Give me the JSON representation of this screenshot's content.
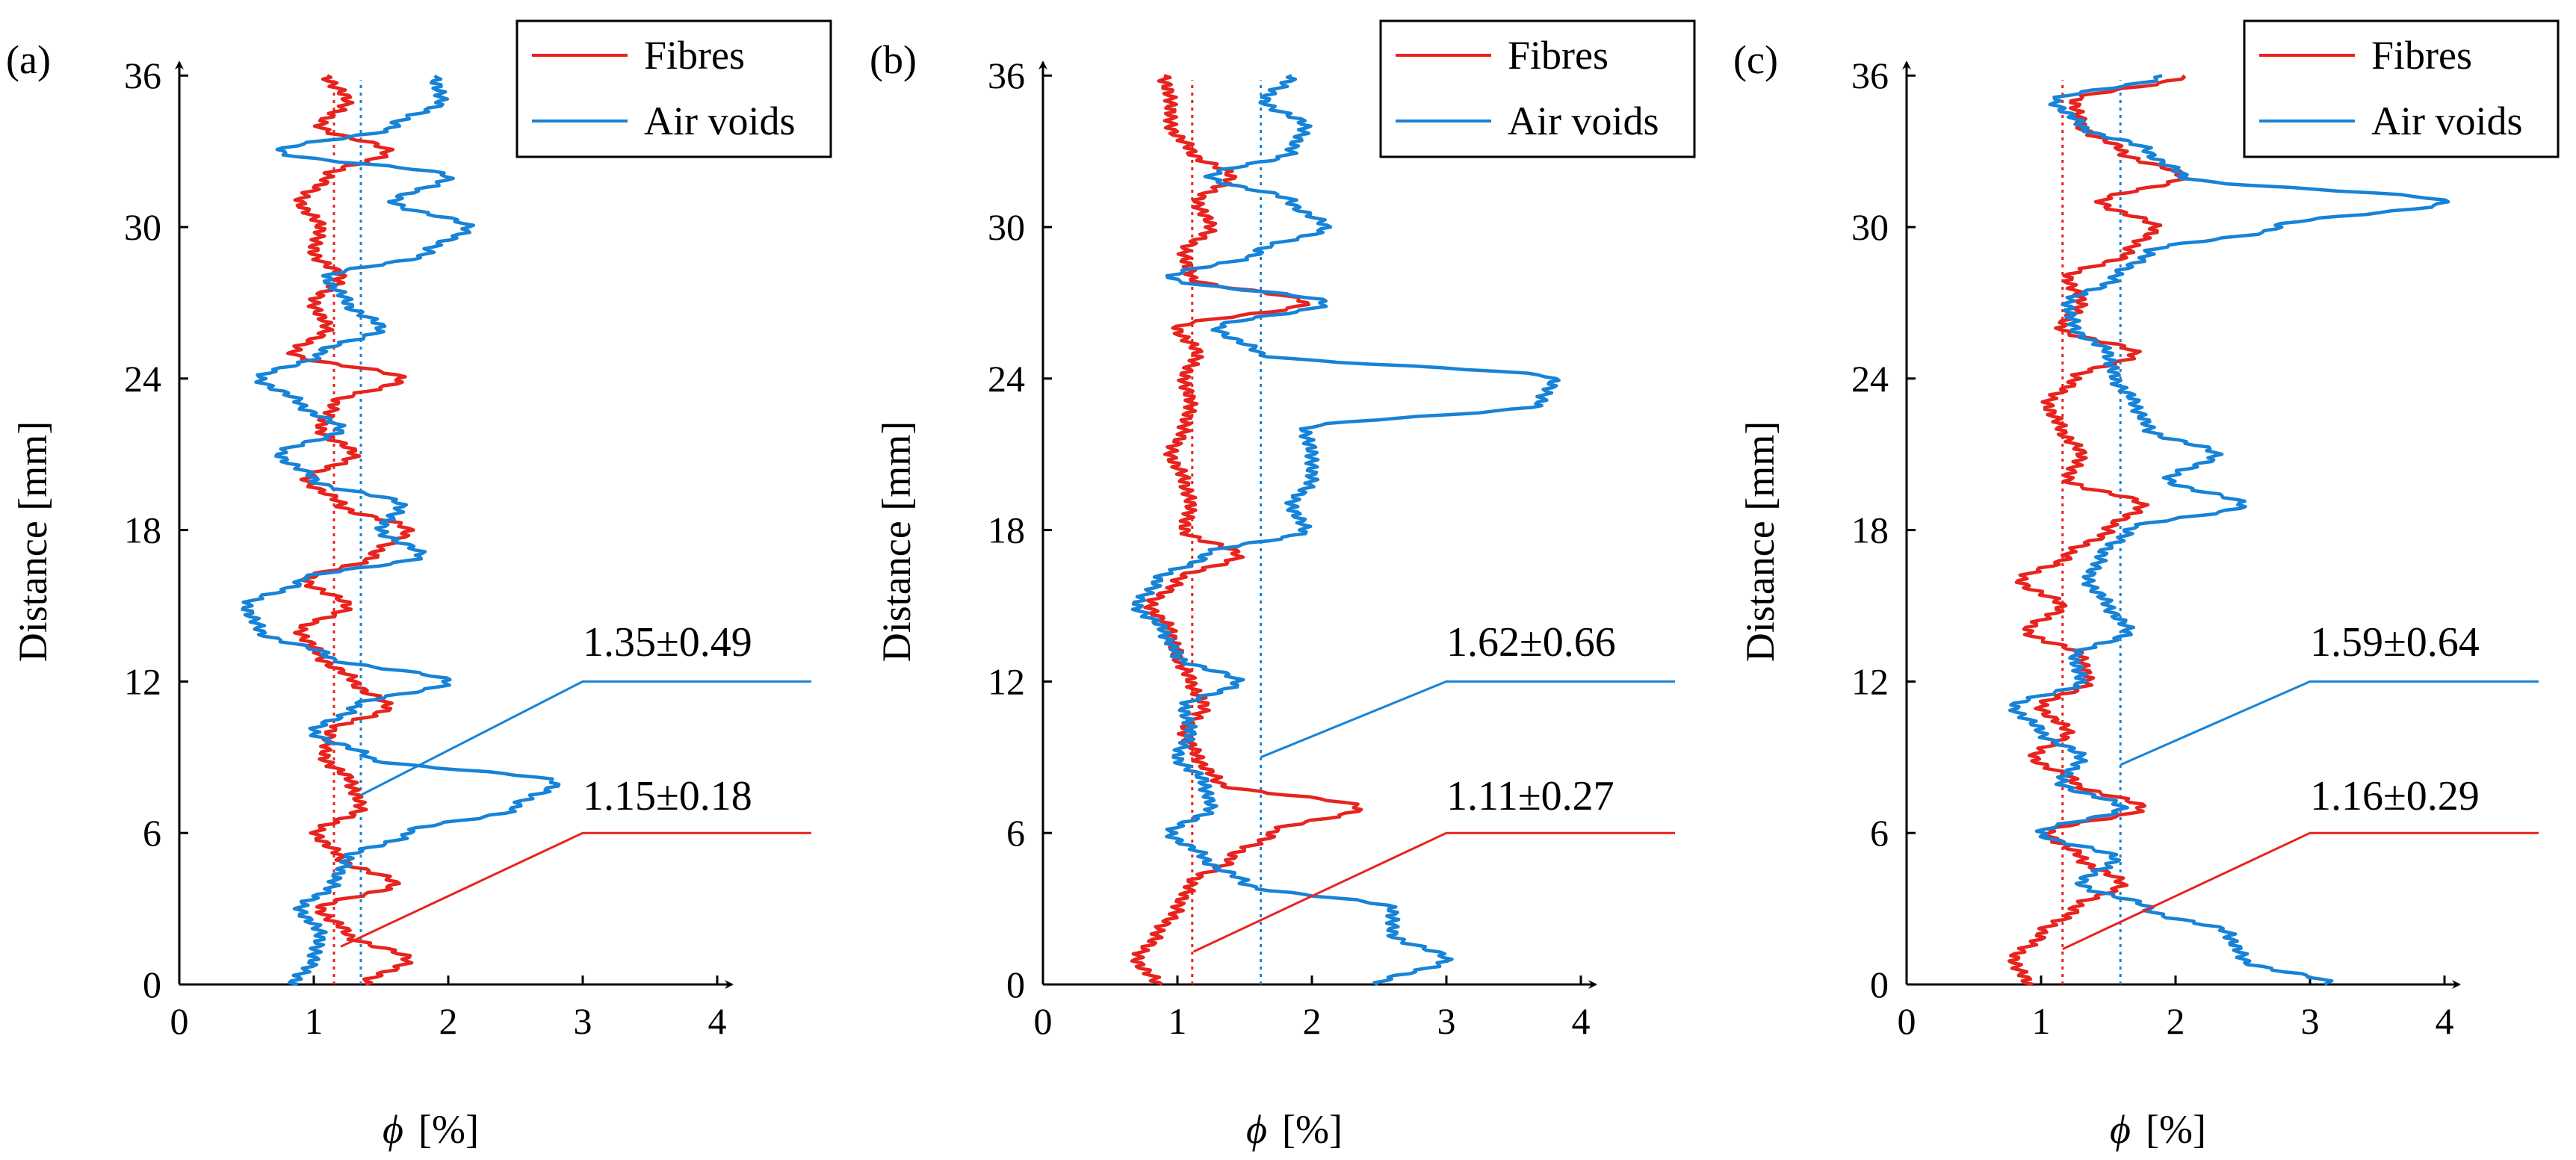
{
  "colors": {
    "fibres": "#e8231e",
    "air_voids": "#1683d8",
    "axis": "#000000"
  },
  "chart_data": [
    {
      "type": "line",
      "panel_label": "(a)",
      "xlabel_symbol": "ϕ",
      "xlabel_unit": "[%]",
      "ylabel": "Distance  [mm]",
      "xlim": [
        0,
        4
      ],
      "ylim": [
        0,
        36
      ],
      "xticks": [
        "0",
        "1",
        "2",
        "3",
        "4"
      ],
      "yticks": [
        "0",
        "6",
        "12",
        "18",
        "24",
        "30",
        "36"
      ],
      "legend": [
        "Fibres",
        "Air voids"
      ],
      "means": {
        "fibres": 1.15,
        "air_voids": 1.35
      },
      "annotations": {
        "fibres": "1.15±0.18",
        "air_voids": "1.35±0.49"
      },
      "series": [
        {
          "name": "Fibres",
          "y": [
            0,
            1,
            2,
            3,
            4,
            5,
            6,
            7,
            8,
            9,
            10,
            11,
            12,
            13,
            14,
            15,
            16,
            17,
            18,
            19,
            20,
            21,
            22,
            23,
            24,
            25,
            26,
            27,
            28,
            29,
            30,
            31,
            32,
            33,
            34,
            35,
            36
          ],
          "x": [
            1.38,
            1.7,
            1.25,
            1.05,
            1.6,
            1.2,
            1.02,
            1.35,
            1.28,
            1.08,
            1.12,
            1.55,
            1.3,
            1.05,
            0.9,
            1.25,
            0.95,
            1.45,
            1.7,
            1.2,
            0.95,
            1.3,
            1.05,
            1.15,
            1.65,
            0.85,
            1.1,
            1.0,
            1.2,
            1.0,
            1.05,
            0.9,
            1.1,
            1.55,
            1.05,
            1.25,
            1.1
          ]
        },
        {
          "name": "Air voids",
          "y": [
            0,
            1,
            2,
            3,
            4,
            5,
            6,
            7,
            8,
            9,
            10,
            11,
            12,
            13,
            14,
            15,
            16,
            17,
            18,
            19,
            20,
            21,
            22,
            23,
            24,
            25,
            26,
            27,
            28,
            29,
            30,
            31,
            32,
            33,
            34,
            35,
            36
          ],
          "x": [
            0.85,
            1.0,
            1.05,
            0.9,
            1.15,
            1.25,
            1.7,
            2.5,
            2.8,
            1.4,
            1.0,
            1.3,
            2.0,
            1.1,
            0.6,
            0.5,
            0.9,
            1.8,
            1.5,
            1.65,
            1.0,
            0.75,
            1.2,
            0.9,
            0.6,
            1.05,
            1.5,
            1.25,
            1.1,
            1.85,
            2.15,
            1.6,
            2.0,
            0.75,
            1.6,
            1.95,
            1.9
          ]
        }
      ]
    },
    {
      "type": "line",
      "panel_label": "(b)",
      "xlabel_symbol": "ϕ",
      "xlabel_unit": "[%]",
      "ylabel": "Distance  [mm]",
      "xlim": [
        0,
        4
      ],
      "ylim": [
        0,
        36
      ],
      "xticks": [
        "0",
        "1",
        "2",
        "3",
        "4"
      ],
      "yticks": [
        "0",
        "6",
        "12",
        "18",
        "24",
        "30",
        "36"
      ],
      "legend": [
        "Fibres",
        "Air voids"
      ],
      "means": {
        "fibres": 1.11,
        "air_voids": 1.62
      },
      "annotations": {
        "fibres": "1.11±0.27",
        "air_voids": "1.62±0.66"
      },
      "series": [
        {
          "name": "Fibres",
          "y": [
            0,
            1,
            2,
            3,
            4,
            5,
            6,
            7,
            8,
            9,
            10,
            11,
            12,
            13,
            14,
            15,
            16,
            17,
            18,
            19,
            20,
            21,
            22,
            23,
            24,
            25,
            26,
            27,
            28,
            29,
            30,
            31,
            32,
            33,
            34,
            35,
            36
          ],
          "x": [
            0.85,
            0.7,
            0.85,
            1.0,
            1.1,
            1.4,
            1.7,
            2.35,
            1.3,
            1.15,
            1.05,
            1.2,
            1.1,
            1.0,
            0.95,
            0.8,
            1.0,
            1.45,
            1.05,
            1.1,
            1.05,
            0.95,
            1.05,
            1.1,
            1.05,
            1.15,
            1.0,
            1.95,
            1.1,
            1.05,
            1.25,
            1.15,
            1.4,
            1.1,
            0.95,
            0.95,
            0.9
          ]
        },
        {
          "name": "Air voids",
          "y": [
            0,
            1,
            2,
            3,
            4,
            5,
            6,
            7,
            8,
            9,
            10,
            11,
            12,
            13,
            14,
            15,
            16,
            17,
            18,
            19,
            20,
            21,
            22,
            23,
            24,
            25,
            26,
            27,
            28,
            29,
            30,
            31,
            32,
            33,
            34,
            35,
            36
          ],
          "x": [
            2.5,
            3.0,
            2.6,
            2.6,
            1.5,
            1.2,
            0.95,
            1.25,
            1.2,
            1.0,
            1.1,
            1.05,
            1.45,
            1.0,
            0.9,
            0.7,
            0.85,
            1.2,
            1.95,
            1.85,
            2.0,
            2.0,
            1.95,
            3.7,
            3.8,
            1.6,
            1.3,
            2.1,
            0.95,
            1.6,
            2.1,
            1.85,
            1.25,
            1.85,
            1.95,
            1.65,
            1.85
          ]
        }
      ]
    },
    {
      "type": "line",
      "panel_label": "(c)",
      "xlabel_symbol": "ϕ",
      "xlabel_unit": "[%]",
      "ylabel": "Distance  [mm]",
      "xlim": [
        0,
        4
      ],
      "ylim": [
        0,
        36
      ],
      "xticks": [
        "0",
        "1",
        "2",
        "3",
        "4"
      ],
      "yticks": [
        "0",
        "6",
        "12",
        "18",
        "24",
        "30",
        "36"
      ],
      "legend": [
        "Fibres",
        "Air voids"
      ],
      "means": {
        "fibres": 1.16,
        "air_voids": 1.59
      },
      "annotations": {
        "fibres": "1.16±0.29",
        "air_voids": "1.59±0.64"
      },
      "series": [
        {
          "name": "Fibres",
          "y": [
            0,
            1,
            2,
            3,
            4,
            5,
            6,
            7,
            8,
            9,
            10,
            11,
            12,
            13,
            14,
            15,
            16,
            17,
            18,
            19,
            20,
            21,
            22,
            23,
            24,
            25,
            26,
            27,
            28,
            29,
            30,
            31,
            32,
            33,
            34,
            35,
            36
          ],
          "x": [
            0.9,
            0.8,
            1.0,
            1.25,
            1.6,
            1.3,
            1.05,
            1.75,
            1.25,
            0.95,
            1.2,
            1.0,
            1.35,
            1.3,
            0.9,
            1.15,
            0.85,
            1.2,
            1.5,
            1.75,
            1.2,
            1.3,
            1.15,
            1.05,
            1.25,
            1.7,
            1.15,
            1.3,
            1.2,
            1.65,
            1.85,
            1.45,
            2.05,
            1.6,
            1.3,
            1.25,
            2.05
          ]
        },
        {
          "name": "Air voids",
          "y": [
            0,
            1,
            2,
            3,
            4,
            5,
            6,
            7,
            8,
            9,
            10,
            11,
            12,
            13,
            14,
            15,
            16,
            17,
            18,
            19,
            20,
            21,
            22,
            23,
            24,
            25,
            26,
            27,
            28,
            29,
            30,
            31,
            32,
            33,
            34,
            35,
            36
          ],
          "x": [
            3.15,
            2.5,
            2.4,
            1.8,
            1.3,
            1.55,
            1.0,
            1.6,
            1.15,
            1.3,
            1.0,
            0.8,
            1.3,
            1.25,
            1.65,
            1.5,
            1.35,
            1.45,
            1.65,
            2.5,
            1.95,
            2.3,
            1.8,
            1.7,
            1.55,
            1.5,
            1.25,
            1.2,
            1.55,
            1.8,
            2.75,
            4.0,
            2.05,
            1.8,
            1.3,
            1.1,
            1.9
          ]
        }
      ]
    }
  ]
}
